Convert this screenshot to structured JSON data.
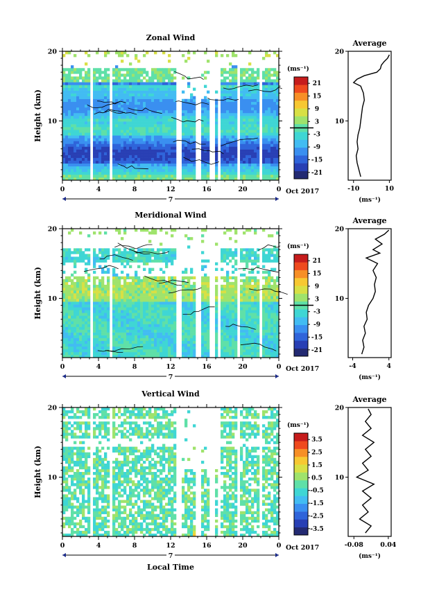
{
  "x_unit_label": "Local Time",
  "date_label": "Oct 2017",
  "day_label": "7",
  "x_ticks": [
    "0",
    "4",
    "8",
    "12",
    "16",
    "20",
    "0"
  ],
  "palette": [
    "#232a72",
    "#283fb4",
    "#2f64da",
    "#3a8ff0",
    "#42bcf2",
    "#3fd6d4",
    "#5fe0a8",
    "#9fe36c",
    "#d8e045",
    "#f7c832",
    "#f78f26",
    "#ef4a1e",
    "#c61c1c"
  ],
  "chart_data": [
    {
      "type": "heatmap",
      "title": "Zonal Wind",
      "ylabel": "Height (km)",
      "y_ticks": [
        "10",
        "20"
      ],
      "ylim": [
        1.5,
        20
      ],
      "xlim": [
        0,
        24
      ],
      "x_ticks": [
        0,
        4,
        8,
        12,
        16,
        20,
        24
      ],
      "colorbar": {
        "unit": "(ms⁻¹)",
        "ticks": [
          "21",
          "15",
          "9",
          "3",
          "-3",
          "-9",
          "-15",
          "-21"
        ],
        "range": [
          -24,
          24
        ],
        "zero_line": 0
      },
      "data_gaps_hours": [
        3.3,
        5.4,
        12.9,
        15.1,
        16.6,
        17.3,
        19.6,
        21.9
      ],
      "profile": {
        "title": "Average",
        "xlabel": "(ms⁻¹)",
        "x_ticks": [
          "-10",
          "10"
        ],
        "x_tick_values": [
          -10,
          10
        ],
        "xlim": [
          -13,
          11
        ],
        "y_ticks": [
          "10",
          "20"
        ],
        "points": [
          [
            -6,
            2
          ],
          [
            -7,
            3
          ],
          [
            -8,
            4
          ],
          [
            -8.5,
            5
          ],
          [
            -7.5,
            6
          ],
          [
            -8,
            7
          ],
          [
            -7.5,
            8
          ],
          [
            -6.5,
            9
          ],
          [
            -6,
            10
          ],
          [
            -5.5,
            11
          ],
          [
            -5,
            12
          ],
          [
            -4,
            13
          ],
          [
            -4.5,
            14
          ],
          [
            -6,
            15
          ],
          [
            -10,
            15.5
          ],
          [
            -8,
            16
          ],
          [
            -4,
            16.5
          ],
          [
            3,
            17
          ],
          [
            5,
            17.5
          ],
          [
            5.5,
            18
          ],
          [
            7,
            18.5
          ],
          [
            9,
            19
          ],
          [
            10,
            19.5
          ]
        ]
      }
    },
    {
      "type": "heatmap",
      "title": "Meridional Wind",
      "ylabel": "Height (km)",
      "y_ticks": [
        "10",
        "20"
      ],
      "ylim": [
        1.5,
        20
      ],
      "xlim": [
        0,
        24
      ],
      "x_ticks": [
        0,
        4,
        8,
        12,
        16,
        20,
        24
      ],
      "colorbar": {
        "unit": "(ms⁻¹)",
        "ticks": [
          "21",
          "15",
          "9",
          "3",
          "-3",
          "-9",
          "-15",
          "-21"
        ],
        "range": [
          -24,
          24
        ],
        "zero_line": 0
      },
      "data_gaps_hours": [
        3.3,
        5.4,
        12.9,
        15.1,
        16.6,
        17.3,
        19.6,
        21.9
      ],
      "profile": {
        "title": "Average",
        "xlabel": "(ms⁻¹)",
        "x_ticks": [
          "-4",
          "4"
        ],
        "x_tick_values": [
          -4,
          4
        ],
        "xlim": [
          -5,
          4.5
        ],
        "y_ticks": [
          "10",
          "20"
        ],
        "points": [
          [
            -2,
            2
          ],
          [
            -1.5,
            3
          ],
          [
            -1.8,
            4
          ],
          [
            -1.2,
            5
          ],
          [
            -1.5,
            6
          ],
          [
            -0.8,
            7
          ],
          [
            -1,
            8
          ],
          [
            -0.5,
            9
          ],
          [
            0.5,
            10
          ],
          [
            1,
            11
          ],
          [
            0.8,
            12
          ],
          [
            1.2,
            13
          ],
          [
            0.5,
            14
          ],
          [
            1.5,
            15
          ],
          [
            -1,
            15.8
          ],
          [
            2,
            16.5
          ],
          [
            0.5,
            17
          ],
          [
            2.5,
            17.8
          ],
          [
            1,
            18.5
          ],
          [
            3,
            19.2
          ],
          [
            4,
            19.8
          ]
        ]
      }
    },
    {
      "type": "heatmap",
      "title": "Vertical Wind",
      "ylabel": "Height (km)",
      "y_ticks": [
        "10",
        "20"
      ],
      "ylim": [
        1.5,
        20
      ],
      "xlim": [
        0,
        24
      ],
      "x_ticks": [
        0,
        4,
        8,
        12,
        16,
        20,
        24
      ],
      "colorbar": {
        "unit": "(ms⁻¹)",
        "ticks": [
          "3.5",
          "2.5",
          "1.5",
          "0.5",
          "-0.5",
          "-1.5",
          "-2.5",
          "-3.5"
        ],
        "range": [
          -4,
          4
        ],
        "zero_line": null
      },
      "data_gaps_hours": [
        3.3,
        5.4,
        12.9,
        15.1,
        16.6,
        17.3,
        19.6,
        21.9
      ],
      "profile": {
        "title": "Average",
        "xlabel": "(ms⁻¹)",
        "x_ticks": [
          "-0.08",
          "0.04"
        ],
        "x_tick_values": [
          -0.08,
          0.04
        ],
        "xlim": [
          -0.1,
          0.05
        ],
        "y_ticks": [
          "10",
          "20"
        ],
        "points": [
          [
            -0.04,
            2
          ],
          [
            -0.02,
            3
          ],
          [
            -0.06,
            4
          ],
          [
            -0.03,
            5
          ],
          [
            -0.05,
            6
          ],
          [
            -0.02,
            7
          ],
          [
            -0.05,
            8
          ],
          [
            -0.01,
            9
          ],
          [
            -0.07,
            10
          ],
          [
            -0.03,
            11
          ],
          [
            -0.05,
            12
          ],
          [
            -0.02,
            13
          ],
          [
            -0.04,
            14
          ],
          [
            -0.01,
            15
          ],
          [
            -0.05,
            16
          ],
          [
            -0.02,
            17
          ],
          [
            -0.04,
            18
          ],
          [
            -0.02,
            19
          ],
          [
            -0.03,
            19.8
          ]
        ]
      }
    }
  ]
}
